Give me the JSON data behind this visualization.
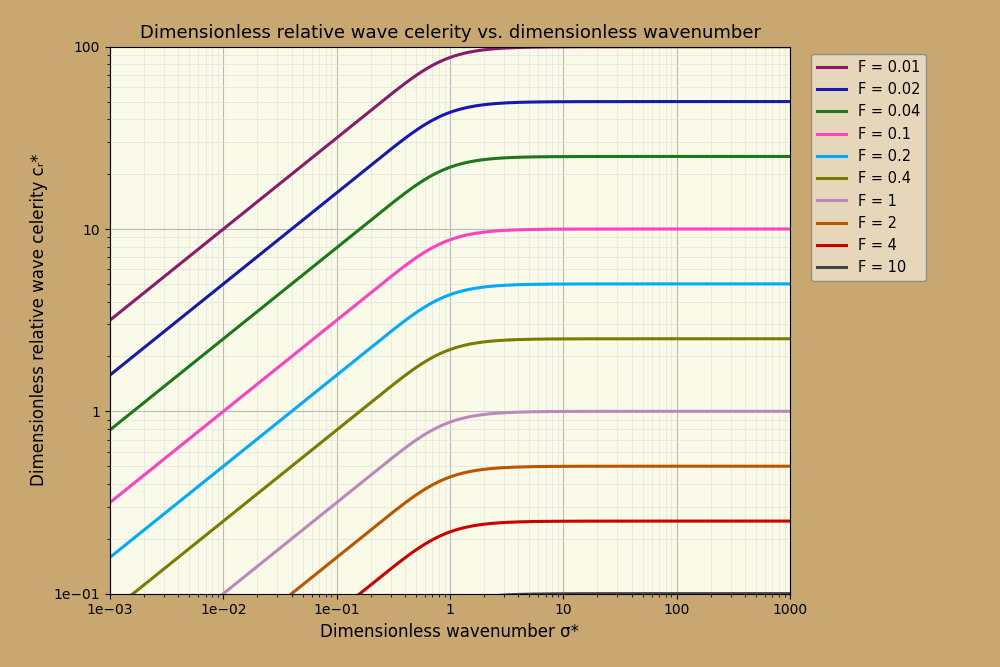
{
  "title": "Dimensionless relative wave celerity vs. dimensionless wavenumber",
  "xlabel": "Dimensionless wavenumber σ*",
  "ylabel": "Dimensionless relative wave celerity cᵣ*",
  "xlim": [
    0.001,
    1000
  ],
  "ylim": [
    0.1,
    100
  ],
  "background_outer": "#C8A870",
  "background_plot": "#FAFAE8",
  "grid_color_major": "#BBBBBB",
  "grid_color_minor": "#DDDDDD",
  "F_values": [
    0.01,
    0.02,
    0.04,
    0.1,
    0.2,
    0.4,
    1.0,
    2.0,
    4.0,
    10.0
  ],
  "colors": [
    "#8B1A6B",
    "#1818B0",
    "#1A7A1A",
    "#FF40C0",
    "#00AAFF",
    "#7B7B00",
    "#BB88BB",
    "#BB5500",
    "#CC0000",
    "#444444"
  ],
  "legend_labels": [
    "F = 0.01",
    "F = 0.02",
    "F = 0.04",
    "F = 0.1",
    "F = 0.2",
    "F = 0.4",
    "F = 1",
    "F = 2",
    "F = 4",
    "F = 10"
  ],
  "line_width": 2.2,
  "title_fontsize": 13,
  "label_fontsize": 12,
  "tick_fontsize": 10,
  "legend_fontsize": 10.5
}
